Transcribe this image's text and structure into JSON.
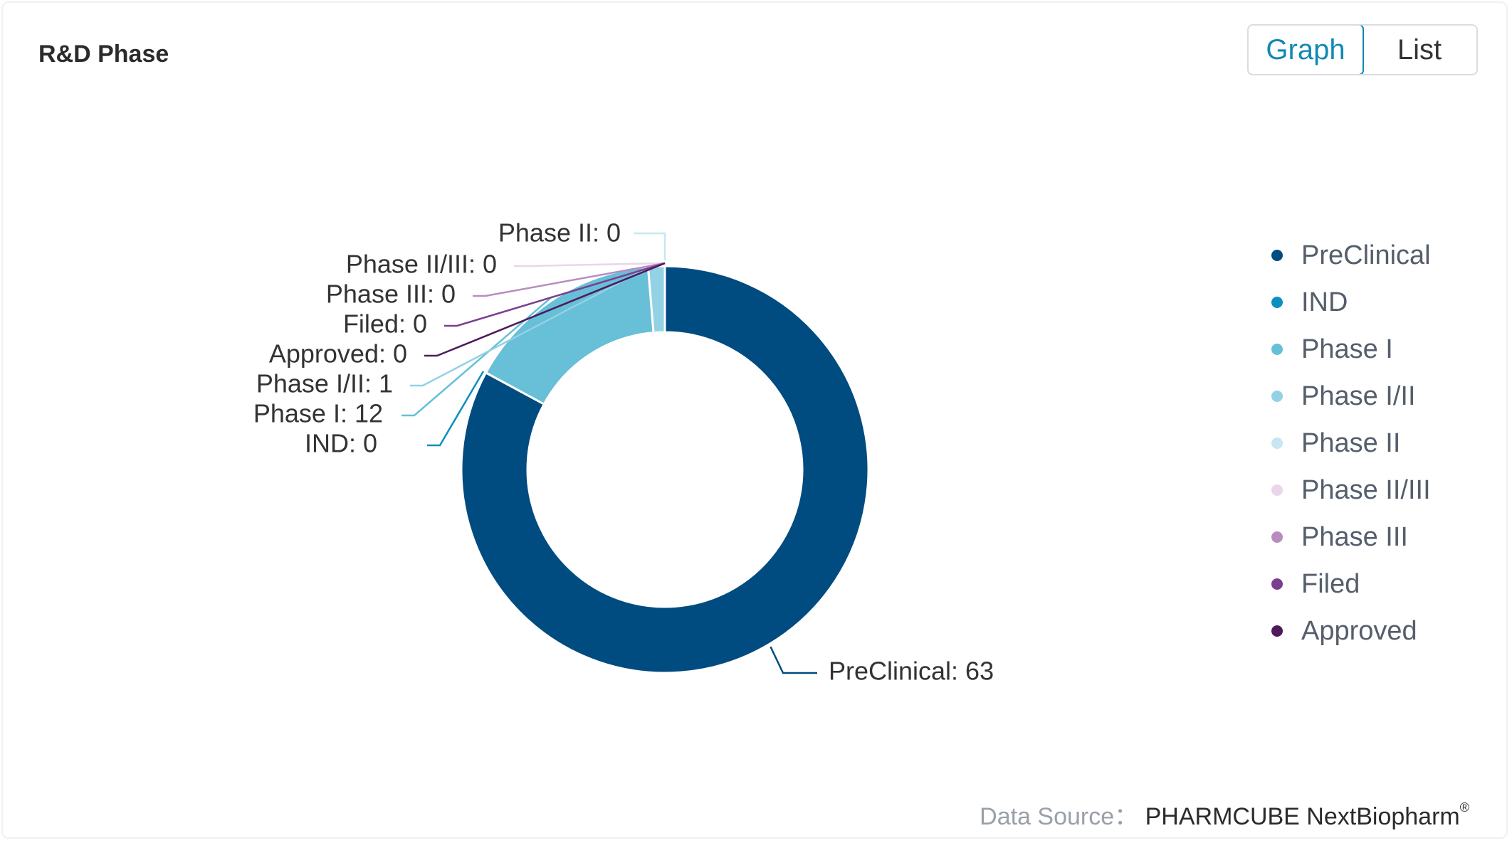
{
  "header": {
    "title": "R&D Phase"
  },
  "view_toggle": {
    "graph_label": "Graph",
    "list_label": "List",
    "active": "Graph"
  },
  "footer": {
    "source_key": "Data Source：",
    "source_value": "PHARMCUBE NextBiopharm",
    "source_mark": "®"
  },
  "chart_data": {
    "type": "pie",
    "donut": true,
    "title": "",
    "legend_position": "right",
    "categories": [
      "PreClinical",
      "IND",
      "Phase I",
      "Phase I/II",
      "Phase II",
      "Phase II/III",
      "Phase III",
      "Filed",
      "Approved"
    ],
    "values": [
      63,
      0,
      12,
      1,
      0,
      0,
      0,
      0,
      0
    ],
    "colors": [
      "#004b7f",
      "#0d8fbf",
      "#67bfd8",
      "#93d1e4",
      "#c6e7f1",
      "#e9d6e8",
      "#b88cc0",
      "#7b3f8f",
      "#4e1a5c"
    ],
    "data_labels": [
      "PreClinical: 63",
      "IND: 0",
      "Phase I: 12",
      "Phase I/II: 1",
      "Phase II: 0",
      "Phase II/III: 0",
      "Phase III: 0",
      "Filed: 0",
      "Approved: 0"
    ]
  }
}
